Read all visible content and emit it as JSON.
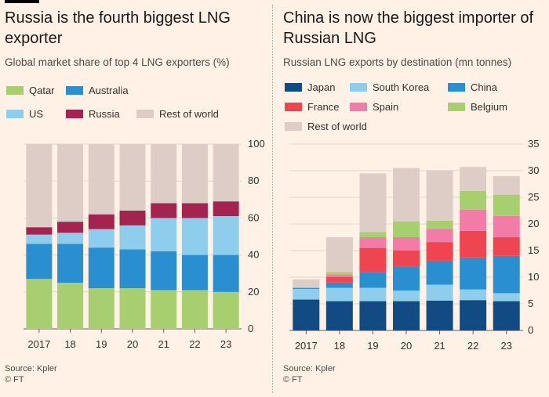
{
  "charts": [
    {
      "title": "Russia is the fourth biggest LNG exporter",
      "subtitle": "Global market share of top 4 LNG exporters (%)",
      "source": "Source: Kpler",
      "credit": "© FT",
      "legend": [
        {
          "name": "Qatar",
          "color": "#a8cf6f"
        },
        {
          "name": "Australia",
          "color": "#2a8fd0"
        },
        {
          "name": "US",
          "color": "#8fcdec"
        },
        {
          "name": "Russia",
          "color": "#a3254f"
        },
        {
          "name": "Rest of world",
          "color": "#ddcdc6"
        }
      ]
    },
    {
      "title": "China is now the biggest importer of Russian LNG",
      "subtitle": "Russian LNG exports by destination (mn tonnes)",
      "source": "Source: Kpler",
      "credit": "© FT",
      "legend": [
        {
          "name": "Japan",
          "color": "#124a83"
        },
        {
          "name": "South Korea",
          "color": "#8fcdec"
        },
        {
          "name": "China",
          "color": "#2a8fd0"
        },
        {
          "name": "France",
          "color": "#ee4551"
        },
        {
          "name": "Spain",
          "color": "#f27ba8"
        },
        {
          "name": "Belgium",
          "color": "#a8cf6f"
        },
        {
          "name": "Rest of world",
          "color": "#ddcdc6"
        }
      ]
    }
  ],
  "chart_data": [
    {
      "type": "bar",
      "stacked": true,
      "categories": [
        "2017",
        "18",
        "19",
        "20",
        "21",
        "22",
        "23"
      ],
      "ylim": [
        0,
        100
      ],
      "yticks": [
        0,
        20,
        40,
        60,
        80,
        100
      ],
      "y_axis_side": "right",
      "grid": true,
      "series": [
        {
          "name": "Qatar",
          "color": "#a8cf6f",
          "values": [
            27,
            25,
            22,
            22,
            21,
            21,
            20
          ]
        },
        {
          "name": "Australia",
          "color": "#2a8fd0",
          "values": [
            19,
            21,
            22,
            21,
            21,
            19,
            20
          ]
        },
        {
          "name": "US",
          "color": "#8fcdec",
          "values": [
            5,
            6,
            10,
            13,
            18,
            20,
            21
          ]
        },
        {
          "name": "Russia",
          "color": "#a3254f",
          "values": [
            4,
            6,
            8,
            8,
            8,
            8,
            8
          ]
        },
        {
          "name": "Rest of world",
          "color": "#ddcdc6",
          "values": [
            45,
            42,
            38,
            36,
            32,
            32,
            31
          ]
        }
      ]
    },
    {
      "type": "bar",
      "stacked": true,
      "categories": [
        "2017",
        "18",
        "19",
        "20",
        "21",
        "22",
        "23"
      ],
      "ylim": [
        0,
        35
      ],
      "yticks": [
        0,
        5,
        10,
        15,
        20,
        25,
        30,
        35
      ],
      "y_axis_side": "right",
      "grid": true,
      "series": [
        {
          "name": "Japan",
          "color": "#124a83",
          "values": [
            5.8,
            5.5,
            5.5,
            5.5,
            5.6,
            5.7,
            5.5
          ]
        },
        {
          "name": "South Korea",
          "color": "#8fcdec",
          "values": [
            2,
            2.5,
            2.5,
            2,
            3,
            2,
            1.5
          ]
        },
        {
          "name": "China",
          "color": "#2a8fd0",
          "values": [
            0.2,
            1,
            3,
            4.5,
            4.5,
            6,
            7
          ]
        },
        {
          "name": "France",
          "color": "#ee4551",
          "values": [
            0,
            1,
            4.5,
            3,
            3.5,
            5,
            3.5
          ]
        },
        {
          "name": "Spain",
          "color": "#f27ba8",
          "values": [
            0,
            0.5,
            2,
            2.5,
            2.5,
            4,
            4
          ]
        },
        {
          "name": "Belgium",
          "color": "#a8cf6f",
          "values": [
            0,
            0.5,
            1,
            3,
            1.5,
            3.5,
            4
          ]
        },
        {
          "name": "Rest of world",
          "color": "#ddcdc6",
          "values": [
            1.6,
            6.5,
            11,
            10,
            9.5,
            4.5,
            3.5
          ]
        }
      ]
    }
  ]
}
